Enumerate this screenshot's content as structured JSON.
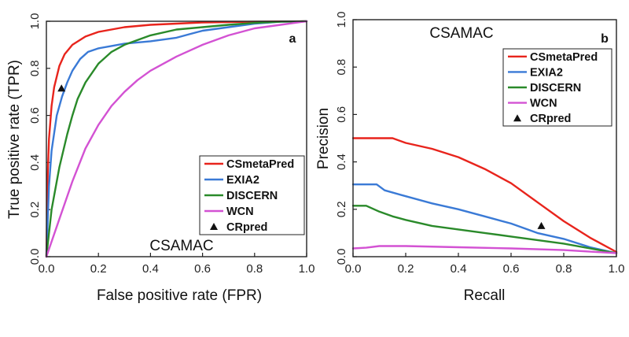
{
  "chart_data": [
    {
      "panel": "a",
      "type": "line",
      "dataset_label": "CSAMAC",
      "xlabel": "False positive rate (FPR)",
      "ylabel": "True positive rate (TPR)",
      "xlim": [
        0,
        1
      ],
      "ylim": [
        0,
        1
      ],
      "xticks": [
        "0.0",
        "0.2",
        "0.4",
        "0.6",
        "0.8",
        "1.0"
      ],
      "yticks": [
        "0.0",
        "0.2",
        "0.4",
        "0.6",
        "0.8",
        "1.0"
      ],
      "legend_position": "bottom-right",
      "series": [
        {
          "name": "CSmetaPred",
          "color": "#e8241c",
          "x": [
            0,
            0.005,
            0.01,
            0.02,
            0.03,
            0.05,
            0.07,
            0.1,
            0.15,
            0.2,
            0.3,
            0.4,
            0.5,
            0.6,
            0.8,
            1.0
          ],
          "y": [
            0,
            0.35,
            0.5,
            0.64,
            0.72,
            0.81,
            0.86,
            0.9,
            0.935,
            0.955,
            0.975,
            0.985,
            0.99,
            0.995,
            0.998,
            1.0
          ]
        },
        {
          "name": "EXIA2",
          "color": "#3a7ad6",
          "x": [
            0,
            0.01,
            0.02,
            0.04,
            0.06,
            0.08,
            0.1,
            0.13,
            0.16,
            0.2,
            0.25,
            0.3,
            0.4,
            0.5,
            0.55,
            0.6,
            0.7,
            0.8,
            0.9,
            1.0
          ],
          "y": [
            0,
            0.3,
            0.45,
            0.6,
            0.68,
            0.74,
            0.79,
            0.84,
            0.87,
            0.885,
            0.895,
            0.905,
            0.915,
            0.93,
            0.945,
            0.96,
            0.975,
            0.99,
            0.998,
            1.0
          ],
          "style": "solid"
        },
        {
          "name": "DISCERN",
          "color": "#2a8a2a",
          "x": [
            0,
            0.02,
            0.05,
            0.08,
            0.1,
            0.12,
            0.15,
            0.2,
            0.25,
            0.3,
            0.4,
            0.5,
            0.6,
            0.7,
            0.8,
            0.9,
            1.0
          ],
          "y": [
            0,
            0.2,
            0.38,
            0.52,
            0.6,
            0.67,
            0.74,
            0.82,
            0.87,
            0.9,
            0.94,
            0.965,
            0.975,
            0.985,
            0.993,
            0.998,
            1.0
          ]
        },
        {
          "name": "WCN",
          "color": "#d352d3",
          "x": [
            0,
            0.05,
            0.1,
            0.15,
            0.2,
            0.25,
            0.3,
            0.35,
            0.4,
            0.5,
            0.6,
            0.7,
            0.8,
            0.9,
            1.0
          ],
          "y": [
            0,
            0.16,
            0.32,
            0.46,
            0.56,
            0.64,
            0.7,
            0.75,
            0.79,
            0.85,
            0.9,
            0.94,
            0.97,
            0.985,
            1.0
          ]
        }
      ],
      "points": [
        {
          "name": "CRpred",
          "x": 0.058,
          "y": 0.715,
          "marker": "triangle"
        }
      ]
    },
    {
      "panel": "b",
      "type": "line",
      "dataset_label": "CSAMAC",
      "xlabel": "Recall",
      "ylabel": "Precision",
      "xlim": [
        0,
        1
      ],
      "ylim": [
        0,
        1
      ],
      "xticks": [
        "0.0",
        "0.2",
        "0.4",
        "0.6",
        "0.8",
        "1.0"
      ],
      "yticks": [
        "0.0",
        "0.2",
        "0.4",
        "0.6",
        "0.8",
        "1.0"
      ],
      "legend_position": "top-right",
      "series": [
        {
          "name": "CSmetaPred",
          "color": "#e8241c",
          "x": [
            0,
            0.15,
            0.2,
            0.3,
            0.4,
            0.5,
            0.6,
            0.7,
            0.8,
            0.9,
            1.0
          ],
          "y": [
            0.5,
            0.5,
            0.48,
            0.455,
            0.42,
            0.37,
            0.31,
            0.23,
            0.15,
            0.08,
            0.02
          ]
        },
        {
          "name": "EXIA2",
          "color": "#3a7ad6",
          "x": [
            0,
            0.09,
            0.12,
            0.2,
            0.3,
            0.4,
            0.5,
            0.6,
            0.7,
            0.8,
            0.9,
            1.0
          ],
          "y": [
            0.305,
            0.305,
            0.28,
            0.255,
            0.225,
            0.2,
            0.17,
            0.14,
            0.1,
            0.075,
            0.04,
            0.015
          ]
        },
        {
          "name": "DISCERN",
          "color": "#2a8a2a",
          "x": [
            0,
            0.05,
            0.1,
            0.15,
            0.2,
            0.3,
            0.4,
            0.5,
            0.6,
            0.7,
            0.8,
            0.9,
            1.0
          ],
          "y": [
            0.215,
            0.215,
            0.19,
            0.17,
            0.155,
            0.13,
            0.115,
            0.1,
            0.085,
            0.07,
            0.055,
            0.035,
            0.015
          ]
        },
        {
          "name": "WCN",
          "color": "#d352d3",
          "x": [
            0,
            0.05,
            0.1,
            0.2,
            0.4,
            0.6,
            0.8,
            1.0
          ],
          "y": [
            0.035,
            0.038,
            0.045,
            0.045,
            0.04,
            0.035,
            0.028,
            0.015
          ]
        }
      ],
      "points": [
        {
          "name": "CRpred",
          "x": 0.715,
          "y": 0.13,
          "marker": "triangle"
        }
      ]
    }
  ]
}
